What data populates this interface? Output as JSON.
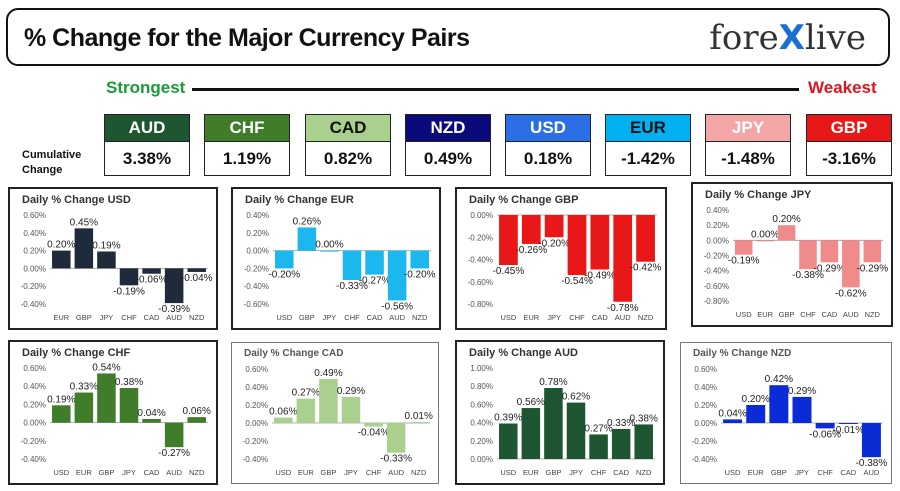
{
  "header": {
    "title": "% Change for the Major Currency Pairs",
    "brand_left": "fore",
    "brand_x": "X",
    "brand_right": "live"
  },
  "ranking": {
    "strongest": "Strongest",
    "weakest": "Weakest",
    "cumulative_label": "Cumulative Change"
  },
  "currencies": [
    {
      "name": "AUD",
      "value": "3.38%",
      "color": "#1e5631"
    },
    {
      "name": "CHF",
      "value": "1.19%",
      "color": "#3f7d2a"
    },
    {
      "name": "CAD",
      "value": "0.82%",
      "color": "#a9d08e",
      "text_color": "#111111"
    },
    {
      "name": "NZD",
      "value": "0.49%",
      "color": "#0a0a7a"
    },
    {
      "name": "USD",
      "value": "0.18%",
      "color": "#2b6fe6"
    },
    {
      "name": "EUR",
      "value": "-1.42%",
      "color": "#00b0f0",
      "text_color": "#111111"
    },
    {
      "name": "JPY",
      "value": "-1.48%",
      "color": "#f4a6a6"
    },
    {
      "name": "GBP",
      "value": "-3.16%",
      "color": "#e81818"
    }
  ],
  "chart_data": [
    {
      "type": "bar",
      "title": "Daily % Change USD",
      "color": "#1f2a3a",
      "categories": [
        "EUR",
        "GBP",
        "JPY",
        "CHF",
        "CAD",
        "AUD",
        "NZD"
      ],
      "values": [
        0.2,
        0.45,
        0.19,
        -0.19,
        -0.06,
        -0.39,
        -0.04
      ],
      "labels": [
        "0.20%",
        "0.45%",
        "0.19%",
        "-0.19%",
        "-0.06%",
        "-0.39%",
        "-0.04%"
      ],
      "ylim": [
        -0.4,
        0.6
      ],
      "yticks": [
        "-0.40%",
        "-0.20%",
        "0.00%",
        "0.20%",
        "0.40%",
        "0.60%"
      ]
    },
    {
      "type": "bar",
      "title": "Daily % Change EUR",
      "color": "#1ab8ee",
      "categories": [
        "USD",
        "GBP",
        "JPY",
        "CHF",
        "CAD",
        "AUD",
        "NZD"
      ],
      "values": [
        -0.2,
        0.26,
        0.0,
        -0.33,
        -0.27,
        -0.56,
        -0.2
      ],
      "labels": [
        "-0.20%",
        "0.26%",
        "0.00%",
        "-0.33%",
        "-0.27%",
        "-0.56%",
        "-0.20%"
      ],
      "ylim": [
        -0.6,
        0.4
      ],
      "yticks": [
        "-0.60%",
        "-0.40%",
        "-0.20%",
        "0.00%",
        "0.20%",
        "0.40%"
      ]
    },
    {
      "type": "bar",
      "title": "Daily % Change GBP",
      "color": "#e81818",
      "categories": [
        "USD",
        "EUR",
        "JPY",
        "CHF",
        "CAD",
        "AUD",
        "NZD"
      ],
      "values": [
        -0.45,
        -0.26,
        -0.2,
        -0.54,
        -0.49,
        -0.78,
        -0.42
      ],
      "labels": [
        "-0.45%",
        "-0.26%",
        "-0.20%",
        "-0.54%",
        "-0.49%",
        "-0.78%",
        "-0.42%"
      ],
      "ylim": [
        -0.8,
        0.0
      ],
      "yticks": [
        "-0.80%",
        "-0.60%",
        "-0.40%",
        "-0.20%",
        "0.00%"
      ]
    },
    {
      "type": "bar",
      "title": "Daily % Change JPY",
      "color": "#f08b8b",
      "categories": [
        "USD",
        "EUR",
        "GBP",
        "CHF",
        "CAD",
        "AUD",
        "NZD"
      ],
      "values": [
        -0.19,
        0.0,
        0.2,
        -0.38,
        -0.29,
        -0.62,
        -0.29
      ],
      "labels": [
        "-0.19%",
        "0.00%",
        "0.20%",
        "-0.38%",
        "-0.29%",
        "-0.62%",
        "-0.29%"
      ],
      "ylim": [
        -0.8,
        0.4
      ],
      "yticks": [
        "-0.80%",
        "-0.60%",
        "-0.40%",
        "-0.20%",
        "0.00%",
        "0.20%",
        "0.40%"
      ]
    },
    {
      "type": "bar",
      "title": "Daily % Change CHF",
      "color": "#3f7d2a",
      "categories": [
        "USD",
        "EUR",
        "GBP",
        "JPY",
        "CAD",
        "AUD",
        "NZD"
      ],
      "values": [
        0.19,
        0.33,
        0.54,
        0.38,
        0.04,
        -0.27,
        0.06
      ],
      "labels": [
        "0.19%",
        "0.33%",
        "0.54%",
        "0.38%",
        "0.04%",
        "-0.27%",
        "0.06%"
      ],
      "ylim": [
        -0.4,
        0.6
      ],
      "yticks": [
        "-0.40%",
        "-0.20%",
        "0.00%",
        "0.20%",
        "0.40%",
        "0.60%"
      ]
    },
    {
      "type": "bar",
      "title": "Daily % Change CAD",
      "color": "#a9d08e",
      "categories": [
        "USD",
        "EUR",
        "GBP",
        "JPY",
        "CHF",
        "AUD",
        "NZD"
      ],
      "values": [
        0.06,
        0.27,
        0.49,
        0.29,
        -0.04,
        -0.33,
        0.01
      ],
      "labels": [
        "0.06%",
        "0.27%",
        "0.49%",
        "0.29%",
        "-0.04%",
        "-0.33%",
        "0.01%"
      ],
      "ylim": [
        -0.4,
        0.6
      ],
      "yticks": [
        "-0.40%",
        "-0.20%",
        "0.00%",
        "0.20%",
        "0.40%",
        "0.60%"
      ]
    },
    {
      "type": "bar",
      "title": "Daily % Change AUD",
      "color": "#1e5631",
      "categories": [
        "USD",
        "EUR",
        "GBP",
        "JPY",
        "CHF",
        "CAD",
        "NZD"
      ],
      "values": [
        0.39,
        0.56,
        0.78,
        0.62,
        0.27,
        0.33,
        0.38
      ],
      "labels": [
        "0.39%",
        "0.56%",
        "0.78%",
        "0.62%",
        "0.27%",
        "0.33%",
        "0.38%"
      ],
      "ylim": [
        0.0,
        1.0
      ],
      "yticks": [
        "0.00%",
        "0.20%",
        "0.40%",
        "0.60%",
        "0.80%",
        "1.00%"
      ]
    },
    {
      "type": "bar",
      "title": "Daily % Change NZD",
      "color": "#0a2bd6",
      "categories": [
        "USD",
        "EUR",
        "GBP",
        "JPY",
        "CHF",
        "CAD",
        "AUD"
      ],
      "values": [
        0.04,
        0.2,
        0.42,
        0.29,
        -0.06,
        -0.01,
        -0.38
      ],
      "labels": [
        "0.04%",
        "0.20%",
        "0.42%",
        "0.29%",
        "-0.06%",
        "-0.01%",
        "-0.38%"
      ],
      "ylim": [
        -0.4,
        0.6
      ],
      "yticks": [
        "-0.40%",
        "-0.20%",
        "0.00%",
        "0.20%",
        "0.40%",
        "0.60%"
      ]
    }
  ]
}
